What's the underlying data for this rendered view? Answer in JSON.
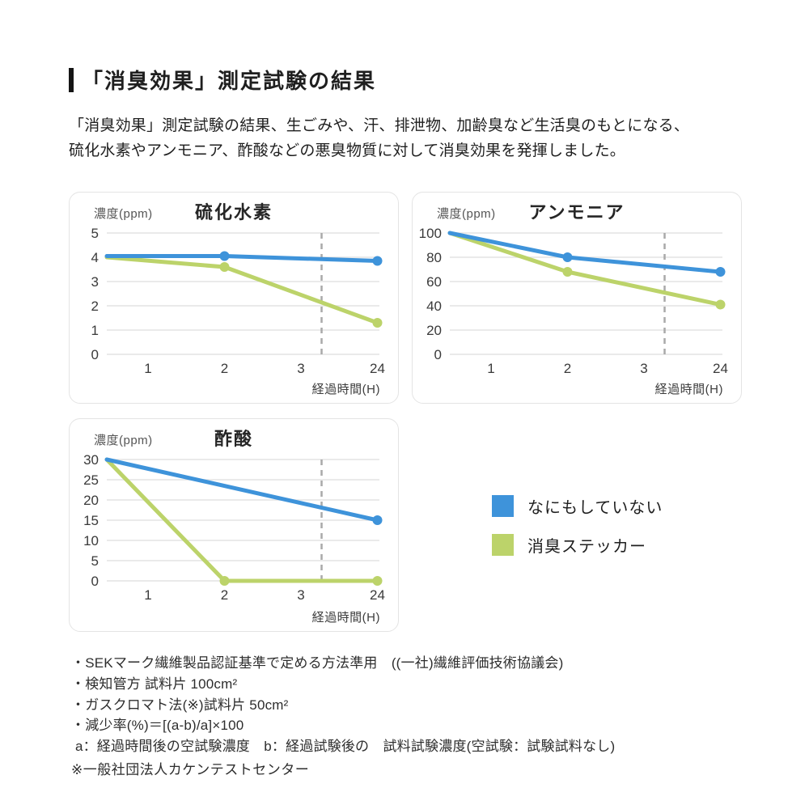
{
  "page": {
    "title": "「消臭効果」測定試験の結果",
    "intro": "「消臭効果」測定試験の結果、生ごみや、汗、排泄物、加齢臭など生活臭のもとになる、\n硫化水素やアンモニア、酢酸などの悪臭物質に対して消臭効果を発揮しました。"
  },
  "colors": {
    "blue": "#3e93da",
    "green": "#bcd36a",
    "grid": "#e3e3e3",
    "dash": "#a9a9a9",
    "tick_text": "#3a3a3a"
  },
  "legend": {
    "items": [
      {
        "label": "なにもしていない",
        "color_key": "blue"
      },
      {
        "label": "消臭ステッカー",
        "color_key": "green"
      }
    ]
  },
  "notes": [
    "・SEKマーク繊維製品認証基準で定める方法準用　((一社)繊維評価技術協議会)",
    "・検知管方 試料片 100cm²",
    "・ガスクロマト法(※)試料片 50cm²",
    "・減少率(%)＝[(a-b)/a]×100",
    " a：経過時間後の空試験濃度　b：経過試験後の　試料試験濃度(空試験：試験試料なし)"
  ],
  "footnote": "※一般社団法人カケンテストセンター",
  "chart_data": [
    {
      "type": "line",
      "title": "硫化水素",
      "ylabel": "濃度(ppm)",
      "xlabel": "経過時間(H)",
      "x_ticks": [
        "1",
        "2",
        "3",
        "24"
      ],
      "y_ticks": [
        5,
        4,
        3,
        2,
        1,
        0
      ],
      "ylim": [
        0,
        5
      ],
      "grid": true,
      "legend_position": "outside-right",
      "dashed_vline_pos": 3.27,
      "series": [
        {
          "name": "なにもしていない",
          "color_key": "blue",
          "points": [
            [
              0,
              4.05,
              0
            ],
            [
              2,
              4.05,
              1
            ],
            [
              24,
              3.85,
              1
            ]
          ]
        },
        {
          "name": "消臭ステッカー",
          "color_key": "green",
          "points": [
            [
              0,
              4.0,
              0
            ],
            [
              2,
              3.6,
              1
            ],
            [
              24,
              1.3,
              1
            ]
          ]
        }
      ]
    },
    {
      "type": "line",
      "title": "アンモニア",
      "ylabel": "濃度(ppm)",
      "xlabel": "経過時間(H)",
      "x_ticks": [
        "1",
        "2",
        "3",
        "24"
      ],
      "y_ticks": [
        100,
        80,
        60,
        40,
        20,
        0
      ],
      "ylim": [
        0,
        100
      ],
      "grid": true,
      "legend_position": "outside-right",
      "dashed_vline_pos": 3.27,
      "series": [
        {
          "name": "なにもしていない",
          "color_key": "blue",
          "points": [
            [
              0,
              100,
              0
            ],
            [
              2,
              80,
              1
            ],
            [
              24,
              68,
              1
            ]
          ]
        },
        {
          "name": "消臭ステッカー",
          "color_key": "green",
          "points": [
            [
              0,
              100,
              0
            ],
            [
              2,
              68,
              1
            ],
            [
              24,
              41,
              1
            ]
          ]
        }
      ]
    },
    {
      "type": "line",
      "title": "酢酸",
      "ylabel": "濃度(ppm)",
      "xlabel": "経過時間(H)",
      "x_ticks": [
        "1",
        "2",
        "3",
        "24"
      ],
      "y_ticks": [
        30,
        25,
        20,
        15,
        10,
        5,
        0
      ],
      "ylim": [
        0,
        30
      ],
      "grid": true,
      "legend_position": "outside-right",
      "dashed_vline_pos": 3.27,
      "series": [
        {
          "name": "なにもしていない",
          "color_key": "blue",
          "points": [
            [
              0,
              30,
              0
            ],
            [
              24,
              15,
              1
            ]
          ]
        },
        {
          "name": "消臭ステッカー",
          "color_key": "green",
          "points": [
            [
              0,
              30,
              0
            ],
            [
              2,
              0,
              1
            ],
            [
              24,
              0,
              1
            ]
          ]
        }
      ]
    }
  ]
}
